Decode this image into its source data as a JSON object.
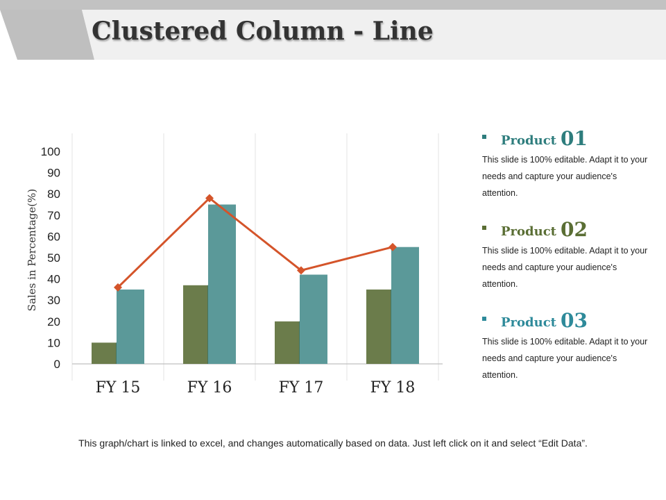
{
  "header": {
    "title": "Clustered Column - Line"
  },
  "chart_data": {
    "type": "bar",
    "title": "",
    "xlabel": "",
    "ylabel": "Sales in Percentage(%)",
    "ylim": [
      0,
      100
    ],
    "yticks": [
      0,
      10,
      20,
      30,
      40,
      50,
      60,
      70,
      80,
      90,
      100
    ],
    "categories": [
      "FY 15",
      "FY 16",
      "FY 17",
      "FY 18"
    ],
    "series": [
      {
        "type": "bar",
        "values": [
          10,
          37,
          20,
          35
        ],
        "color": "#6b7c4b"
      },
      {
        "type": "bar",
        "values": [
          35,
          75,
          42,
          55
        ],
        "color": "#5b9999"
      },
      {
        "type": "line",
        "values": [
          36,
          78,
          44,
          55
        ],
        "color": "#d4542a"
      }
    ],
    "grid": "vertical"
  },
  "legend": [
    {
      "label": "Product",
      "number": "01",
      "color": "#2e7d7d",
      "desc": "This slide is 100% editable. Adapt it to your needs and capture your audience's attention."
    },
    {
      "label": "Product",
      "number": "02",
      "color": "#5a6e34",
      "desc": "This slide is 100% editable. Adapt it to your needs and capture your audience's attention."
    },
    {
      "label": "Product",
      "number": "03",
      "color": "#2e8a9a",
      "desc": "This slide is 100% editable. Adapt it to your needs and capture your audience's attention."
    }
  ],
  "footer": {
    "note": "This graph/chart is linked to excel, and changes automatically based on data. Just left click on it and select “Edit Data”."
  }
}
